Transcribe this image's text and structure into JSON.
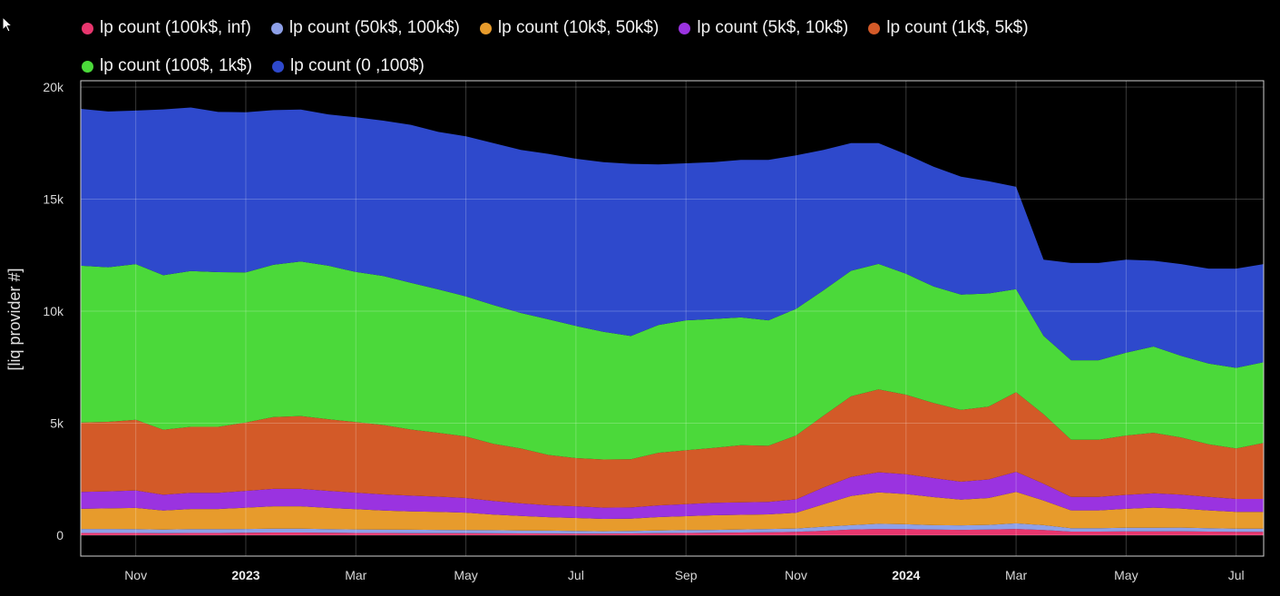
{
  "chart_data": {
    "type": "area",
    "stacked": true,
    "ylabel": "[liq provider #]",
    "xlabel": "",
    "ylim": [
      0,
      20000
    ],
    "yticks": [
      {
        "value": 0,
        "label": "0"
      },
      {
        "value": 5000,
        "label": "5k"
      },
      {
        "value": 10000,
        "label": "10k"
      },
      {
        "value": 15000,
        "label": "15k"
      },
      {
        "value": 20000,
        "label": "20k"
      }
    ],
    "xlim": [
      0,
      21.5
    ],
    "xticks": [
      {
        "value": 1,
        "label": "Nov",
        "bold": false
      },
      {
        "value": 3,
        "label": "2023",
        "bold": true
      },
      {
        "value": 5,
        "label": "Mar",
        "bold": false
      },
      {
        "value": 7,
        "label": "May",
        "bold": false
      },
      {
        "value": 9,
        "label": "Jul",
        "bold": false
      },
      {
        "value": 11,
        "label": "Sep",
        "bold": false
      },
      {
        "value": 13,
        "label": "Nov",
        "bold": false
      },
      {
        "value": 15,
        "label": "2024",
        "bold": true
      },
      {
        "value": 17,
        "label": "Mar",
        "bold": false
      },
      {
        "value": 19,
        "label": "May",
        "bold": false
      },
      {
        "value": 21,
        "label": "Jul",
        "bold": false
      }
    ],
    "x_unit": "months since Oct 2022 (start of Oct 1 2022 = 0)",
    "grid": true,
    "legend_position": "top",
    "x": [
      0,
      0.5,
      1,
      1.5,
      2,
      2.5,
      3,
      3.5,
      4,
      4.5,
      5,
      5.5,
      6,
      6.5,
      7,
      7.5,
      8,
      8.5,
      9,
      9.5,
      10,
      10.5,
      11,
      11.5,
      12,
      12.5,
      13,
      13.5,
      14,
      14.5,
      15,
      15.5,
      16,
      16.5,
      17,
      17.5,
      18,
      18.5,
      19,
      19.5,
      20,
      20.5,
      21,
      21.5
    ],
    "series": [
      {
        "name": "lp count (100k$, inf)",
        "color": "#e8366e",
        "values": [
          100,
          100,
          100,
          95,
          100,
          100,
          110,
          120,
          120,
          110,
          100,
          100,
          95,
          90,
          90,
          85,
          80,
          75,
          70,
          70,
          80,
          90,
          100,
          110,
          120,
          130,
          150,
          200,
          250,
          280,
          270,
          250,
          240,
          250,
          280,
          230,
          160,
          160,
          170,
          170,
          180,
          160,
          150,
          150
        ]
      },
      {
        "name": "lp count (50k$, 100k$)",
        "color": "#8ea0e8",
        "values": [
          180,
          180,
          170,
          160,
          170,
          170,
          170,
          170,
          170,
          160,
          160,
          150,
          150,
          150,
          140,
          140,
          130,
          130,
          120,
          110,
          110,
          120,
          130,
          130,
          140,
          150,
          150,
          180,
          200,
          230,
          220,
          200,
          200,
          210,
          250,
          220,
          150,
          150,
          160,
          160,
          160,
          150,
          140,
          140
        ]
      },
      {
        "name": "lp count (10k$, 50k$)",
        "color": "#e79b2c",
        "values": [
          900,
          920,
          950,
          850,
          900,
          900,
          950,
          1000,
          1000,
          950,
          900,
          850,
          820,
          800,
          780,
          700,
          650,
          600,
          580,
          550,
          550,
          600,
          620,
          650,
          650,
          650,
          700,
          1000,
          1300,
          1400,
          1350,
          1250,
          1150,
          1200,
          1400,
          1100,
          800,
          800,
          850,
          900,
          850,
          800,
          750,
          750
        ]
      },
      {
        "name": "lp count (5k$, 10k$)",
        "color": "#9a33e0",
        "values": [
          750,
          760,
          780,
          700,
          720,
          720,
          750,
          780,
          780,
          760,
          740,
          720,
          700,
          680,
          650,
          600,
          560,
          530,
          520,
          500,
          500,
          520,
          540,
          560,
          560,
          560,
          600,
          750,
          850,
          900,
          880,
          850,
          800,
          830,
          900,
          750,
          600,
          600,
          620,
          640,
          620,
          600,
          580,
          580
        ]
      },
      {
        "name": "lp count (1k$, 5k$)",
        "color": "#d35a28",
        "values": [
          3100,
          3100,
          3150,
          2900,
          2950,
          2950,
          3050,
          3200,
          3250,
          3200,
          3150,
          3100,
          2950,
          2850,
          2750,
          2550,
          2450,
          2250,
          2150,
          2150,
          2150,
          2350,
          2400,
          2450,
          2550,
          2500,
          2850,
          3200,
          3600,
          3700,
          3550,
          3350,
          3200,
          3250,
          3550,
          3100,
          2550,
          2550,
          2650,
          2700,
          2550,
          2350,
          2250,
          2500
        ]
      },
      {
        "name": "lp count (100$, 1k$)",
        "color": "#4bd93a",
        "values": [
          7000,
          6900,
          6950,
          6900,
          6950,
          6900,
          6700,
          6800,
          6900,
          6850,
          6700,
          6650,
          6550,
          6400,
          6250,
          6200,
          6050,
          6050,
          5900,
          5700,
          5500,
          5700,
          5800,
          5750,
          5700,
          5600,
          5650,
          5600,
          5600,
          5600,
          5400,
          5200,
          5150,
          5050,
          4600,
          3500,
          3550,
          3550,
          3700,
          3850,
          3650,
          3600,
          3600,
          3600
        ]
      },
      {
        "name": "lp count (0 ,100$)",
        "color": "#2e49cc",
        "values": [
          7000,
          6950,
          6850,
          7400,
          7300,
          7150,
          7150,
          6900,
          6780,
          6750,
          6900,
          6930,
          7050,
          7030,
          7140,
          7225,
          7280,
          7385,
          7460,
          7570,
          7685,
          7170,
          7010,
          7000,
          7030,
          7160,
          6850,
          6270,
          5700,
          5390,
          5330,
          5350,
          5260,
          5010,
          4570,
          3400,
          4340,
          4340,
          4150,
          3830,
          4090,
          4240,
          4430,
          4380
        ]
      }
    ],
    "ui": {
      "cursor_icon": "mouse-pointer-icon"
    }
  }
}
